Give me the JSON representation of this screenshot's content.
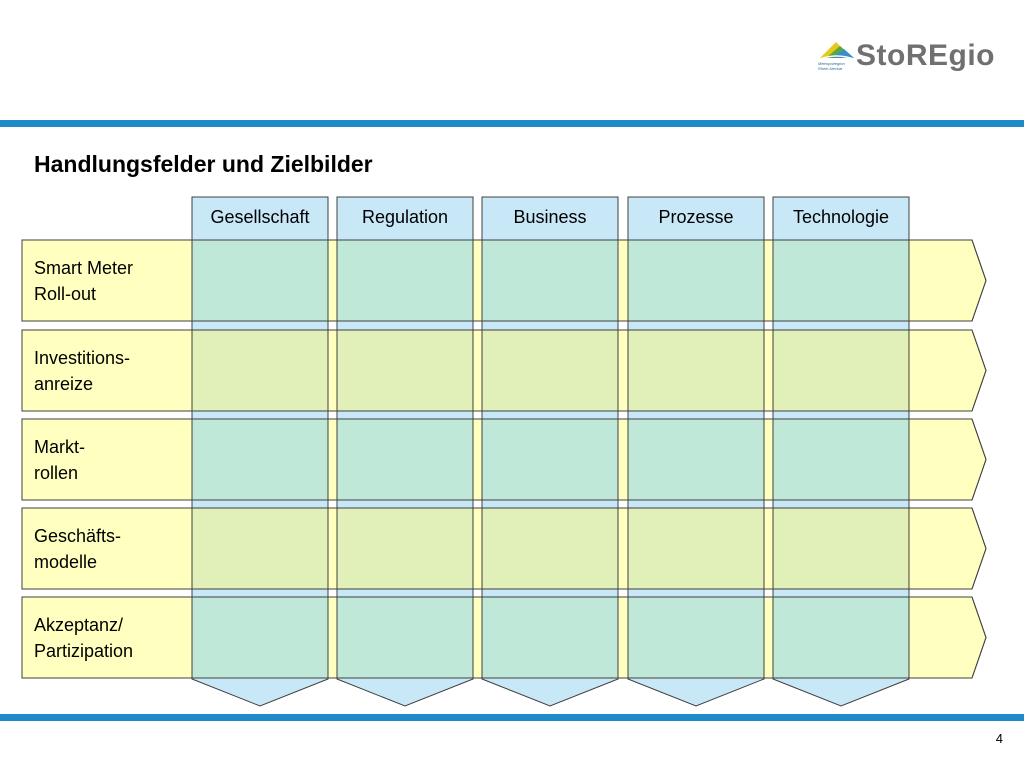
{
  "header": {
    "logo_text": "StoREgio",
    "logo_subtext": "Metropolregion Rhein-Neckar",
    "colors": {
      "band": "#1f8ac9",
      "logo_blue": "#3b8fc8",
      "logo_green": "#5aa83c",
      "logo_yellow": "#e8c81c",
      "logo_text": "#707070"
    }
  },
  "slide": {
    "title": "Handlungsfelder und Zielbilder",
    "page_number": "4"
  },
  "matrix": {
    "columns": [
      {
        "label": "Gesellschaft"
      },
      {
        "label": "Regulation"
      },
      {
        "label": "Business"
      },
      {
        "label": "Prozesse"
      },
      {
        "label": "Technologie"
      }
    ],
    "rows": [
      {
        "label": "Smart Meter\nRoll-out"
      },
      {
        "label": "Investitions-\nanreize"
      },
      {
        "label": "Markt-\nrollen"
      },
      {
        "label": "Geschäfts-\nmodelle"
      },
      {
        "label": "Akzeptanz/\nPartizipation"
      }
    ],
    "colors": {
      "row_fill": "#ffffc0",
      "column_fill": "#c8e8f8",
      "cell_even": "#c0e8d8",
      "cell_odd": "#e0f0b8",
      "stroke": "#404040"
    }
  }
}
